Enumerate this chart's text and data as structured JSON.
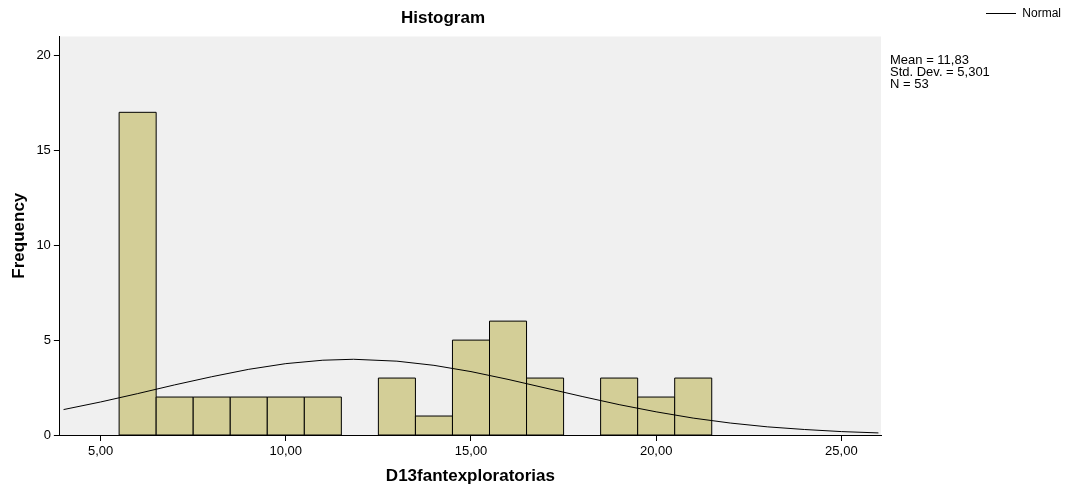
{
  "chart_data": {
    "type": "histogram",
    "title": "Histogram",
    "xlabel": "D13fantexploratorias",
    "ylabel": "Frequency",
    "bins": [
      5.5,
      6.5,
      7.5,
      8.5,
      9.5,
      10.5,
      11.5,
      12.5,
      13.5,
      14.5,
      15.5,
      16.5,
      17.5,
      18.5,
      19.5,
      20.5,
      21.5
    ],
    "values": [
      17,
      2,
      2,
      2,
      2,
      2,
      0,
      3,
      1,
      5,
      6,
      3,
      0,
      3,
      2,
      3
    ],
    "color": "#d3ce97",
    "series": [
      {
        "type": "line",
        "name": "Normal",
        "color": "#000000",
        "x": [
          4,
          5,
          6,
          7,
          8,
          9,
          10,
          11,
          11.83,
          13,
          14,
          15,
          16,
          17,
          18,
          19,
          20,
          21,
          22,
          23,
          24,
          25,
          26
        ],
        "values": [
          1.34,
          1.74,
          2.18,
          2.64,
          3.07,
          3.46,
          3.76,
          3.94,
          3.99,
          3.89,
          3.67,
          3.34,
          2.93,
          2.48,
          2.03,
          1.6,
          1.22,
          0.89,
          0.63,
          0.43,
          0.29,
          0.18,
          0.11
        ]
      }
    ],
    "xlim": [
      3.9,
      26.07
    ],
    "ylim": [
      0,
      21
    ],
    "xticks": [
      {
        "value": 5,
        "label": "5,00"
      },
      {
        "value": 10,
        "label": "10,00"
      },
      {
        "value": 15,
        "label": "15,00"
      },
      {
        "value": 20,
        "label": "20,00"
      },
      {
        "value": 25,
        "label": "25,00"
      }
    ],
    "yticks": [
      0,
      5,
      10,
      15,
      20
    ],
    "grid": false,
    "legend": "top right",
    "marker": "none",
    "line_style": "solid",
    "annotations": [
      "Mean = 11,83",
      "Std. Dev. = 5,301",
      "N = 53"
    ]
  }
}
